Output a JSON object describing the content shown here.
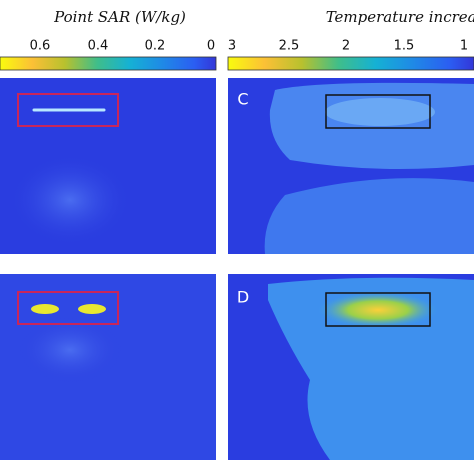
{
  "colorbars": [
    {
      "title": "Point SAR (W/kg)",
      "ticks": [
        0.6,
        0.4,
        0.2,
        0
      ]
    },
    {
      "title": "Temperature increas",
      "ticks": [
        3,
        2.5,
        2,
        1.5,
        1
      ]
    }
  ],
  "panels": [
    {
      "label": "C"
    },
    {
      "label": "D"
    }
  ]
}
